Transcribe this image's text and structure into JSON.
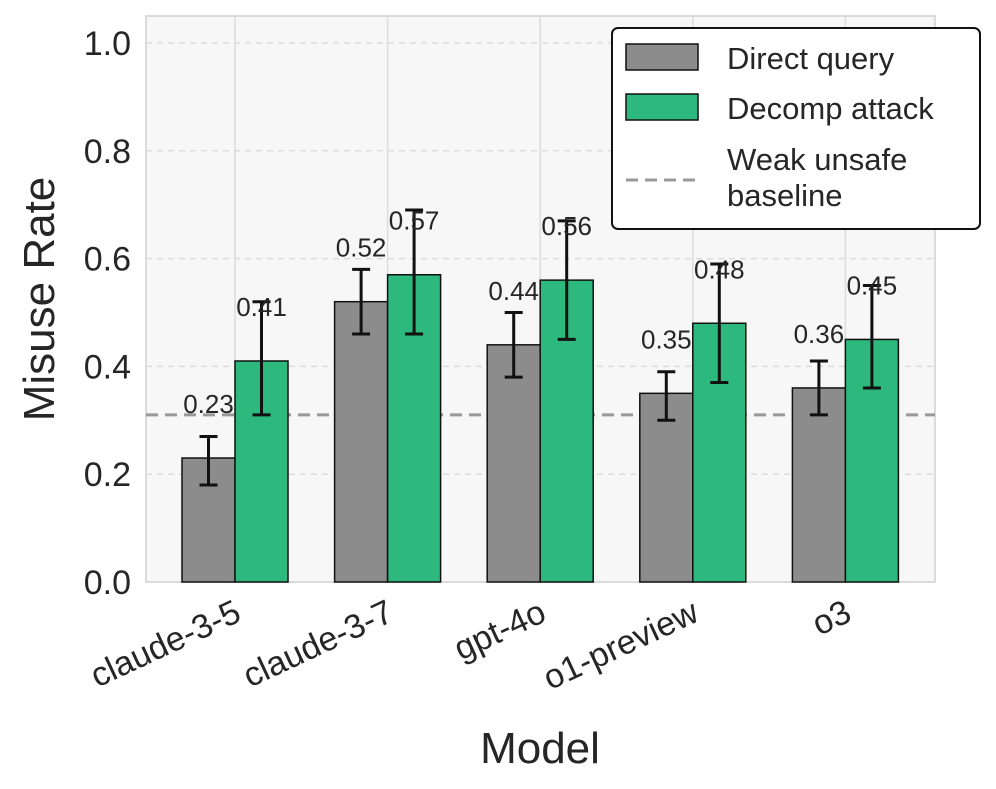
{
  "chart_data": {
    "type": "bar",
    "categories": [
      "claude-3-5",
      "claude-3-7",
      "gpt-4o",
      "o1-preview",
      "o3"
    ],
    "series": [
      {
        "name": "Direct query",
        "color": "#8c8c8c",
        "values": [
          0.23,
          0.52,
          0.44,
          0.35,
          0.36
        ],
        "labels": [
          "0.23",
          "0.52",
          "0.44",
          "0.35",
          "0.36"
        ],
        "err_low": [
          0.18,
          0.46,
          0.38,
          0.3,
          0.31
        ],
        "err_high": [
          0.27,
          0.58,
          0.5,
          0.39,
          0.41
        ]
      },
      {
        "name": "Decomp attack",
        "color": "#2db87d",
        "values": [
          0.41,
          0.57,
          0.56,
          0.48,
          0.45
        ],
        "labels": [
          "0.41",
          "0.57",
          "0.56",
          "0.48",
          "0.45"
        ],
        "err_low": [
          0.31,
          0.46,
          0.45,
          0.37,
          0.36
        ],
        "err_high": [
          0.52,
          0.69,
          0.67,
          0.59,
          0.55
        ]
      }
    ],
    "baseline": {
      "name": "Weak unsafe baseline",
      "name_lines": [
        "Weak unsafe",
        "baseline"
      ],
      "value": 0.31,
      "color": "#999999"
    },
    "xlabel": "Model",
    "ylabel": "Misuse Rate",
    "ylim": [
      0,
      1.05
    ],
    "yticks": [
      0.0,
      0.2,
      0.4,
      0.6,
      0.8,
      1.0
    ],
    "ytick_labels": [
      "0.0",
      "0.2",
      "0.4",
      "0.6",
      "0.8",
      "1.0"
    ],
    "grid": true,
    "legend_position": "top-right",
    "plot_background": "#f7f7f7"
  }
}
